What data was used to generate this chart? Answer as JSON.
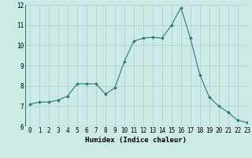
{
  "x": [
    0,
    1,
    2,
    3,
    4,
    5,
    6,
    7,
    8,
    9,
    10,
    11,
    12,
    13,
    14,
    15,
    16,
    17,
    18,
    19,
    20,
    21,
    22,
    23
  ],
  "y": [
    7.1,
    7.2,
    7.2,
    7.3,
    7.5,
    8.1,
    8.1,
    8.1,
    7.6,
    7.9,
    9.2,
    10.2,
    10.35,
    10.4,
    10.35,
    11.0,
    11.85,
    10.35,
    8.55,
    7.45,
    7.0,
    6.7,
    6.3,
    6.2
  ],
  "xlabel": "Humidex (Indice chaleur)",
  "ylim": [
    6,
    12
  ],
  "xlim": [
    -0.5,
    23
  ],
  "yticks": [
    6,
    7,
    8,
    9,
    10,
    11,
    12
  ],
  "xticks": [
    0,
    1,
    2,
    3,
    4,
    5,
    6,
    7,
    8,
    9,
    10,
    11,
    12,
    13,
    14,
    15,
    16,
    17,
    18,
    19,
    20,
    21,
    22,
    23
  ],
  "line_color": "#2a7d6d",
  "marker_color": "#2a7d6d",
  "bg_color": "#cceae6",
  "grid_color": "#aaccca",
  "xlabel_fontsize": 6.5,
  "tick_fontsize": 5.5
}
